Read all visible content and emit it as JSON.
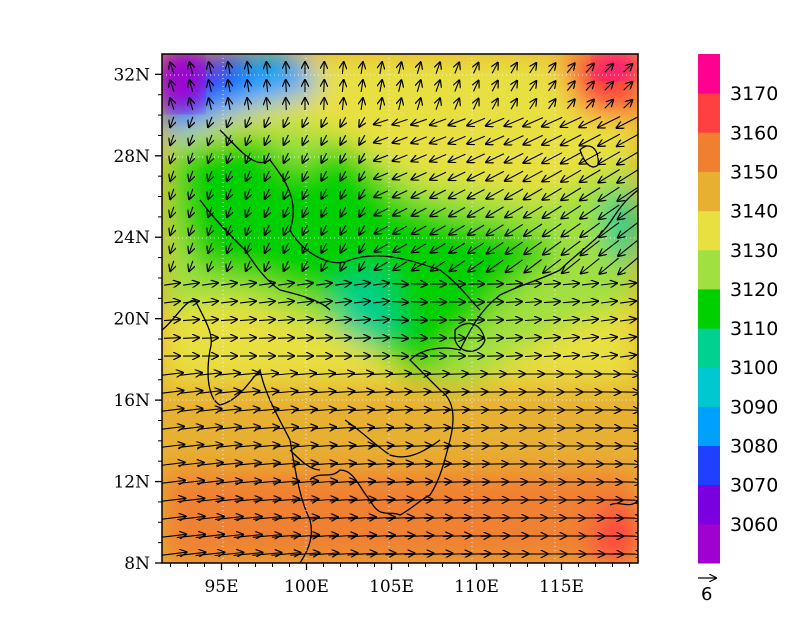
{
  "chart_data": {
    "type": "heatmap",
    "description_kind": "geopotential height contour map with wind vectors",
    "x_ticks": [
      "95E",
      "100E",
      "105E",
      "110E",
      "115E"
    ],
    "x_tick_values": [
      95,
      100,
      105,
      110,
      115
    ],
    "y_ticks": [
      "8N",
      "12N",
      "16N",
      "20N",
      "24N",
      "28N",
      "32N"
    ],
    "y_tick_values": [
      8,
      12,
      16,
      20,
      24,
      28,
      32
    ],
    "xlim": [
      91.5,
      119.5
    ],
    "ylim": [
      8,
      33
    ],
    "colorbar": {
      "levels": [
        "3060",
        "3070",
        "3080",
        "3090",
        "3100",
        "3110",
        "3120",
        "3130",
        "3140",
        "3150",
        "3160",
        "3170"
      ],
      "colors": [
        "#a000d0",
        "#7a00e0",
        "#2040ff",
        "#00a0ff",
        "#00c8d0",
        "#00d090",
        "#00d000",
        "#a0e040",
        "#e8e040",
        "#e8b030",
        "#f08030",
        "#ff4040",
        "#ff0090"
      ]
    },
    "reference_vector": {
      "label": "6"
    },
    "grid": "dotted (partial)"
  }
}
